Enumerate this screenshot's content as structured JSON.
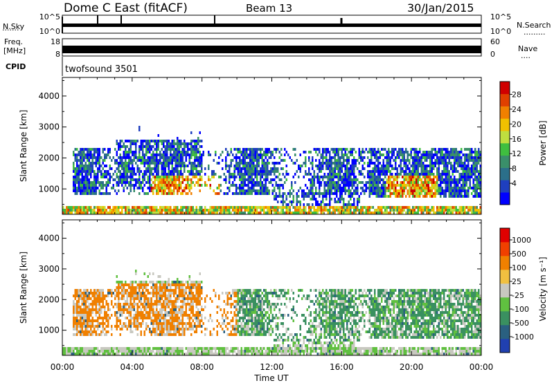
{
  "header": {
    "station": "Dome C East (fitACF)",
    "beam": "Beam 13",
    "date": "30/Jan/2015"
  },
  "strips": {
    "nsky_label": "N.Sky",
    "nsky_ticks": [
      "10^5",
      "10^0"
    ],
    "nsearch_label": "N.Search",
    "nsearch_ticks": [
      "10^5",
      "10^0"
    ],
    "freq_label_line1": "Freq.",
    "freq_label_line2": "[MHz]",
    "freq_ticks": [
      "18",
      "8"
    ],
    "nave_label": "Nave",
    "nave_ticks": [
      "60",
      "0"
    ],
    "cpid_label": "CPID",
    "cpid_value": "twofsound 3501"
  },
  "panels": {
    "ylabel": "Slant Range [km]",
    "xlabel": "Time UT"
  },
  "colors": {
    "power": [
      "#0000ff",
      "#1f3fbf",
      "#2b6f8a",
      "#3a8f6a",
      "#3fbf3f",
      "#bfdf3f",
      "#f0c000",
      "#f08000",
      "#e04000",
      "#d00000"
    ],
    "velocity": [
      "#e00000",
      "#f04000",
      "#f08000",
      "#f0c040",
      "#c8c8c0",
      "#60c040",
      "#3a9060",
      "#2a6080",
      "#2040b0"
    ]
  },
  "chart_data": [
    {
      "type": "heatmap",
      "name": "power",
      "xlabel": "Time UT",
      "ylabel": "Slant Range [km]",
      "x_ticks": [
        "00:00",
        "04:00",
        "08:00",
        "12:00",
        "16:00",
        "20:00",
        "00:00"
      ],
      "xlim": [
        0,
        24
      ],
      "ylim": [
        180,
        4600
      ],
      "y_ticks": [
        1000,
        2000,
        3000,
        4000
      ],
      "colorbar_label": "Power [dB]",
      "colorbar_ticks": [
        28,
        24,
        20,
        16,
        12,
        8,
        4
      ],
      "clim": [
        0,
        30
      ]
    },
    {
      "type": "heatmap",
      "name": "velocity",
      "xlabel": "Time UT",
      "ylabel": "Slant Range [km]",
      "x_ticks": [
        "00:00",
        "04:00",
        "08:00",
        "12:00",
        "16:00",
        "20:00",
        "00:00"
      ],
      "xlim": [
        0,
        24
      ],
      "ylim": [
        180,
        4600
      ],
      "y_ticks": [
        1000,
        2000,
        3000,
        4000
      ],
      "colorbar_label": "Velocity [m s⁻¹]",
      "colorbar_ticks": [
        "1000",
        "500",
        "100",
        "25",
        "-25",
        "-100",
        "-500",
        "-1000"
      ]
    }
  ]
}
